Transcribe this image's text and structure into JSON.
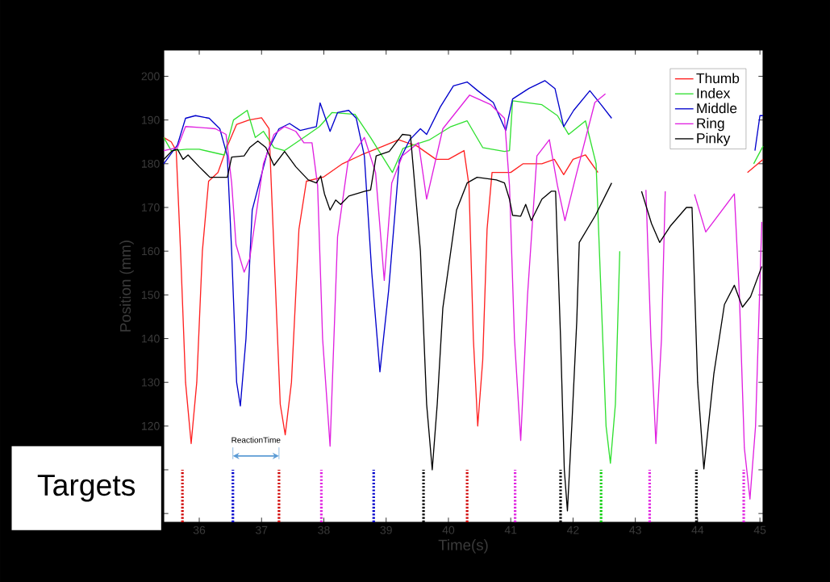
{
  "chart_data": {
    "type": "line",
    "xlabel": "Time(s)",
    "ylabel": "Position (mm)",
    "xlim": [
      35.43,
      45.05
    ],
    "ylim": [
      98,
      206
    ],
    "xticks": [
      36,
      37,
      38,
      39,
      40,
      41,
      42,
      43,
      44,
      45
    ],
    "yticks": [
      {
        "value": 100,
        "label": null
      },
      {
        "value": 110,
        "label": null
      },
      120,
      130,
      140,
      150,
      160,
      170,
      180,
      190,
      200
    ],
    "grid": false,
    "legend": "top right",
    "annotations": [
      "Targets",
      "ReactionTime"
    ],
    "series": [
      {
        "name": "Thumb",
        "color": "#ff2020",
        "line_style": "solid",
        "x": [
          35.43,
          35.55,
          35.63,
          35.7,
          35.78,
          35.87,
          35.96,
          36.05,
          36.15,
          36.3,
          36.45,
          36.6,
          36.8,
          37.0,
          37.12,
          37.2,
          37.3,
          37.38,
          37.48,
          37.6,
          37.72,
          38.0,
          38.3,
          38.6,
          38.95,
          39.2,
          39.5,
          39.8,
          40.0,
          40.25,
          40.33,
          40.4,
          40.47,
          40.55,
          40.62,
          40.7,
          41.0,
          41.2,
          41.5,
          41.7,
          41.85,
          42.0,
          42.2,
          42.4,
          43.5,
          44.8,
          45.05
        ],
        "values": [
          186,
          185,
          183,
          160,
          130,
          116,
          130,
          160,
          176,
          178,
          184,
          189,
          190,
          190.5,
          188,
          160,
          125,
          118,
          130,
          165,
          176,
          177,
          180,
          182,
          184,
          185.5,
          184,
          181,
          181,
          183,
          175,
          140,
          120,
          135,
          165,
          178,
          178,
          180,
          180,
          181,
          177.5,
          181,
          182,
          178,
          null,
          178,
          181
        ]
      },
      {
        "name": "Index",
        "color": "#30e030",
        "line_style": "solid",
        "x": [
          35.43,
          35.55,
          35.8,
          36.0,
          36.4,
          36.55,
          36.77,
          36.9,
          37.03,
          37.2,
          37.37,
          37.75,
          37.93,
          38.13,
          38.5,
          38.75,
          39.1,
          39.27,
          39.7,
          40.04,
          40.3,
          40.55,
          40.9,
          40.98,
          41.03,
          41.5,
          41.75,
          41.93,
          42.2,
          42.37,
          42.45,
          42.53,
          42.6,
          42.68,
          42.75,
          43.5,
          44.9,
          45.05
        ],
        "values": [
          186,
          183,
          183.3,
          183.3,
          182,
          190,
          192.2,
          186,
          187.4,
          183.7,
          183,
          186.7,
          188.5,
          191.7,
          191.3,
          186,
          178,
          183.5,
          185.5,
          188.5,
          189.8,
          183.7,
          182.8,
          183,
          194.4,
          193.5,
          191,
          186.7,
          189.8,
          180,
          150,
          120,
          111.5,
          125,
          160,
          null,
          180,
          184
        ]
      },
      {
        "name": "Middle",
        "color": "#0000cc",
        "line_style": "solid",
        "x": [
          35.43,
          35.65,
          35.78,
          35.94,
          36.16,
          36.33,
          36.45,
          36.52,
          36.6,
          36.66,
          36.75,
          36.85,
          37.1,
          37.28,
          37.45,
          37.62,
          37.88,
          37.94,
          38.1,
          38.22,
          38.4,
          38.52,
          38.65,
          38.77,
          38.9,
          39.04,
          39.21,
          39.38,
          39.55,
          39.65,
          39.87,
          40.08,
          40.3,
          40.47,
          40.72,
          40.92,
          41.03,
          41.29,
          41.55,
          41.71,
          41.85,
          42.01,
          42.27,
          42.45,
          42.62,
          43.5,
          44.92,
          45.0,
          45.05
        ],
        "values": [
          180,
          184.3,
          190.4,
          191,
          190.4,
          188,
          181.8,
          160,
          130,
          124.6,
          140,
          169.4,
          183,
          188,
          189.2,
          187.6,
          188.5,
          193.9,
          187.4,
          191.7,
          192.2,
          190.4,
          181.8,
          155,
          132.4,
          151,
          180.6,
          185.5,
          188,
          186.7,
          193,
          197.8,
          198.7,
          196.7,
          194,
          187.6,
          194.8,
          197.2,
          199,
          197.2,
          188.5,
          192.2,
          196.7,
          193.5,
          190.4,
          null,
          183,
          191,
          191
        ]
      },
      {
        "name": "Ring",
        "color": "#e020e0",
        "line_style": "solid",
        "x": [
          35.43,
          35.65,
          35.78,
          36.0,
          36.26,
          36.43,
          36.52,
          36.59,
          36.72,
          36.81,
          37.03,
          37.2,
          37.37,
          37.55,
          37.68,
          37.81,
          37.9,
          37.98,
          38.1,
          38.22,
          38.39,
          38.65,
          38.83,
          38.97,
          39.09,
          39.26,
          39.52,
          39.65,
          39.91,
          40.34,
          40.68,
          40.9,
          40.98,
          41.06,
          41.16,
          41.27,
          41.42,
          41.62,
          41.75,
          41.87,
          42.05,
          42.35,
          42.52,
          42.9,
          43.17,
          43.25,
          43.33,
          43.42,
          43.48,
          43.7,
          43.95,
          44.13,
          44.59,
          44.67,
          44.75,
          44.84,
          44.93,
          45.03
        ],
        "values": [
          183,
          183.7,
          188.5,
          188.3,
          188,
          186.7,
          175.6,
          161.5,
          155.2,
          158.3,
          180,
          186.7,
          188.5,
          187.4,
          184.8,
          184.8,
          175,
          140,
          115.4,
          163.3,
          180.6,
          186,
          178,
          153.3,
          175.6,
          181.8,
          184.8,
          171.9,
          188,
          195.7,
          193.5,
          190.4,
          175,
          140,
          116.7,
          150,
          181.8,
          185.5,
          175,
          167,
          177.4,
          194,
          196,
          null,
          174,
          140,
          116,
          140,
          173.7,
          null,
          173,
          164.4,
          173.1,
          150,
          115,
          103.3,
          120,
          166.7
        ]
      },
      {
        "name": "Pinky",
        "color": "#000000",
        "line_style": "solid",
        "x": [
          35.43,
          35.56,
          35.65,
          35.74,
          35.82,
          36.0,
          36.17,
          36.45,
          36.52,
          36.72,
          36.81,
          36.94,
          37.07,
          37.2,
          37.37,
          37.55,
          37.75,
          37.88,
          37.95,
          38.01,
          38.1,
          38.19,
          38.27,
          38.4,
          38.66,
          38.75,
          38.84,
          39.05,
          39.26,
          39.39,
          39.43,
          39.55,
          39.65,
          39.74,
          39.82,
          39.91,
          40.13,
          40.3,
          40.46,
          40.77,
          40.9,
          40.98,
          41.03,
          41.16,
          41.24,
          41.33,
          41.5,
          41.65,
          41.72,
          41.8,
          41.86,
          41.91,
          41.98,
          42.06,
          42.1,
          42.36,
          42.62,
          42.85,
          43.1,
          43.26,
          43.39,
          43.56,
          43.82,
          43.91,
          44.0,
          44.1,
          44.26,
          44.43,
          44.59,
          44.72,
          44.85,
          45.03
        ],
        "values": [
          181,
          182.9,
          183.3,
          181,
          182,
          179.3,
          176.9,
          176.9,
          181.5,
          181.8,
          183.7,
          185.2,
          183.7,
          179.6,
          182.8,
          179.3,
          176.3,
          175.6,
          177.2,
          173.1,
          169.4,
          171.7,
          170.7,
          172.6,
          173.7,
          174,
          181.8,
          182.8,
          186.7,
          186.5,
          180,
          160,
          125,
          110,
          125,
          147,
          169.4,
          175.6,
          176.9,
          176.3,
          175.6,
          171.9,
          168.2,
          168,
          170.7,
          167,
          171.9,
          173.7,
          173.7,
          140,
          110,
          100.6,
          120,
          144,
          162,
          168.2,
          175.6,
          null,
          173.7,
          166.3,
          162,
          165.7,
          170,
          170,
          130,
          110.2,
          131.9,
          147.8,
          152.2,
          147.2,
          149.6,
          156.5
        ]
      },
      {
        "color": "#d00000",
        "line_style": "dotted",
        "x": [
          35.73,
          35.73
        ],
        "values": [
          98,
          110
        ]
      },
      {
        "color": "#0000cc",
        "line_style": "dotted",
        "x": [
          36.54,
          36.54
        ],
        "values": [
          98,
          110
        ]
      },
      {
        "color": "#d00000",
        "line_style": "dotted",
        "x": [
          37.28,
          37.28
        ],
        "values": [
          98,
          110
        ]
      },
      {
        "color": "#e020e0",
        "line_style": "dotted",
        "x": [
          37.96,
          37.96
        ],
        "values": [
          98,
          110
        ]
      },
      {
        "color": "#0000cc",
        "line_style": "dotted",
        "x": [
          38.8,
          38.8
        ],
        "values": [
          98,
          110
        ]
      },
      {
        "color": "#000000",
        "line_style": "dotted",
        "x": [
          39.6,
          39.6
        ],
        "values": [
          98,
          110
        ]
      },
      {
        "color": "#d00000",
        "line_style": "dotted",
        "x": [
          40.3,
          40.3
        ],
        "values": [
          98,
          110
        ]
      },
      {
        "color": "#e020e0",
        "line_style": "dotted",
        "x": [
          41.07,
          41.07
        ],
        "values": [
          98,
          110
        ]
      },
      {
        "color": "#000000",
        "line_style": "dotted",
        "x": [
          41.8,
          41.8
        ],
        "values": [
          98,
          110
        ]
      },
      {
        "color": "#00cc00",
        "line_style": "dotted",
        "x": [
          42.45,
          42.45
        ],
        "values": [
          98,
          110
        ]
      },
      {
        "color": "#e020e0",
        "line_style": "dotted",
        "x": [
          43.23,
          43.23
        ],
        "values": [
          98,
          110
        ]
      },
      {
        "color": "#000000",
        "line_style": "dotted",
        "x": [
          43.98,
          43.98
        ],
        "values": [
          98,
          110
        ]
      },
      {
        "color": "#e020e0",
        "line_style": "dotted",
        "x": [
          44.74,
          44.74
        ],
        "values": [
          98,
          110
        ]
      }
    ]
  }
}
